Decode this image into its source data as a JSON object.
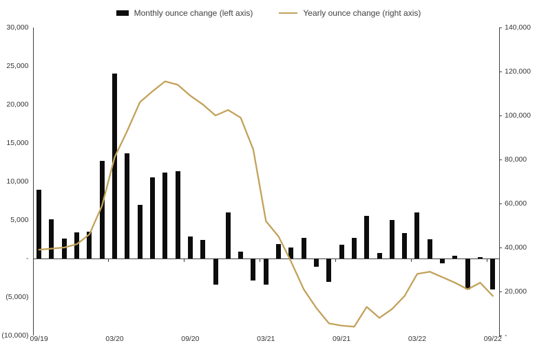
{
  "legend": {
    "monthly_label": "Monthly ounce change (left axis)",
    "yearly_label": "Yearly ounce change (right axis)"
  },
  "colors": {
    "bar": "#0d0d0d",
    "line": "#c2a159",
    "axis": "#3f3f3f",
    "text": "#333333",
    "background": "#ffffff"
  },
  "chart_data": {
    "type": "bar",
    "subtype": "bar+line combo, dual axis",
    "title": "",
    "xlabel": "",
    "ylabel": "",
    "grid": false,
    "legend_position": "top-center",
    "categories": [
      "09/19",
      "10/19",
      "11/19",
      "12/19",
      "01/20",
      "02/20",
      "03/20",
      "04/20",
      "05/20",
      "06/20",
      "07/20",
      "08/20",
      "09/20",
      "10/20",
      "11/20",
      "12/20",
      "01/21",
      "02/21",
      "03/21",
      "04/21",
      "05/21",
      "06/21",
      "07/21",
      "08/21",
      "09/21",
      "10/21",
      "11/21",
      "12/21",
      "01/22",
      "02/22",
      "03/22",
      "04/22",
      "05/22",
      "06/22",
      "07/22",
      "08/22",
      "09/22"
    ],
    "series": [
      {
        "name": "Monthly ounce change (left axis)",
        "type": "bar",
        "axis": "left",
        "color": "#0d0d0d",
        "values": [
          8900,
          5100,
          2600,
          3400,
          3500,
          12700,
          24000,
          13700,
          7000,
          10500,
          11200,
          11300,
          2900,
          2400,
          -3400,
          6000,
          900,
          -2900,
          -3400,
          1900,
          1400,
          2700,
          -1100,
          -3000,
          1800,
          2700,
          5500,
          700,
          5000,
          3300,
          6000,
          2500,
          -600,
          400,
          -4000,
          200,
          -4000
        ]
      },
      {
        "name": "Yearly ounce change (right axis)",
        "type": "line",
        "axis": "right",
        "color": "#c2a159",
        "values": [
          39000,
          39500,
          40000,
          41500,
          46000,
          59000,
          81000,
          93000,
          106000,
          111000,
          115500,
          114000,
          109000,
          105000,
          100000,
          102500,
          99000,
          84500,
          52000,
          45000,
          33500,
          21000,
          12500,
          5500,
          4500,
          4000,
          13000,
          8000,
          12000,
          18000,
          28000,
          29000,
          26500,
          24000,
          21000,
          24000,
          18000
        ]
      }
    ],
    "left_axis": {
      "min": -10000,
      "max": 30000,
      "step": 5000,
      "tick_labels": [
        "30,000",
        "25,000",
        "20,000",
        "15,000",
        "10,000",
        "5,000",
        "-",
        "(5,000)",
        "(10,000)"
      ]
    },
    "right_axis": {
      "min": 0,
      "max": 140000,
      "step": 20000,
      "tick_labels": [
        "140,000",
        "120,000",
        "100,000",
        "80,000",
        "60,000",
        "40,000",
        "20,000",
        "-"
      ]
    },
    "x_tick_labels": [
      "09/19",
      "03/20",
      "09/20",
      "03/21",
      "09/21",
      "03/22",
      "09/22"
    ],
    "x_label_indices": [
      0,
      6,
      12,
      18,
      24,
      30,
      36
    ]
  }
}
